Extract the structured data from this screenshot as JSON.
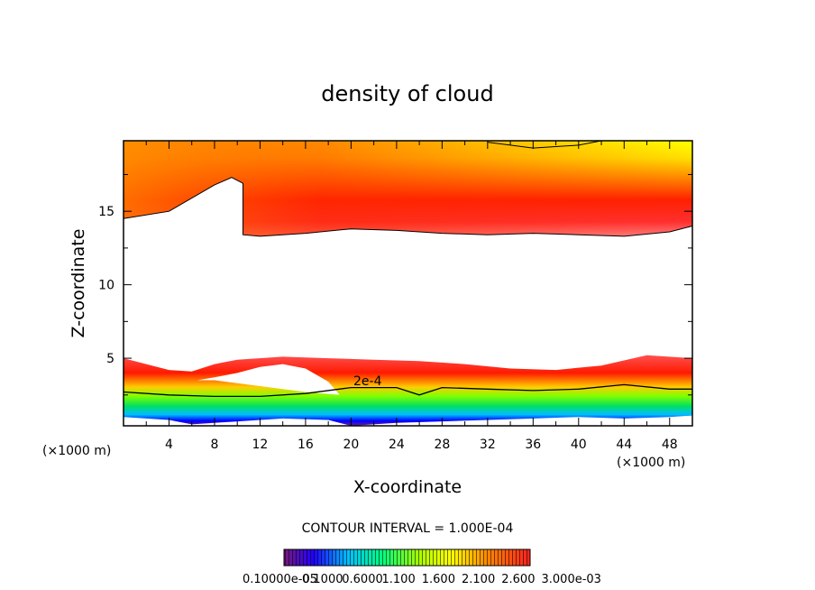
{
  "chart_data": {
    "type": "contour",
    "title": "density of cloud",
    "xlabel": "X-coordinate",
    "ylabel": "Z-coordinate",
    "x_unit_left": "(×1000 m)",
    "x_unit_right": "(×1000 m)",
    "xlim": [
      0,
      50
    ],
    "ylim": [
      0.4,
      19.8
    ],
    "x_ticks": [
      "4",
      "8",
      "12",
      "16",
      "20",
      "24",
      "28",
      "32",
      "36",
      "40",
      "44",
      "48"
    ],
    "x_tick_values": [
      4,
      8,
      12,
      16,
      20,
      24,
      28,
      32,
      36,
      40,
      44,
      48
    ],
    "y_ticks": [
      "5",
      "10",
      "15"
    ],
    "y_tick_values": [
      5,
      10,
      15
    ],
    "contour_label": "2e-4",
    "contour_interval_text": "CONTOUR INTERVAL = 1.000E-04",
    "colorbar_text": "0.10000e-05",
    "colorbar_tick_labels": [
      "0.1000",
      "0.6000",
      "1.100",
      "1.600",
      "2.100",
      "2.600",
      "3.000e-03"
    ],
    "colorbar_range": [
      1e-07,
      0.003
    ],
    "colormap": [
      "#4b0082",
      "#0000ff",
      "#00bfff",
      "#00ff7f",
      "#7fff00",
      "#ffff00",
      "#ff8c00",
      "#ff2a00",
      "#ff0000"
    ],
    "upper_layer": {
      "bottom_km": [
        [
          0,
          14.5
        ],
        [
          4,
          15.0
        ],
        [
          8,
          16.8
        ],
        [
          9.5,
          17.3
        ],
        [
          10.5,
          16.9
        ],
        [
          10.5,
          13.4
        ],
        [
          12,
          13.3
        ],
        [
          16,
          13.5
        ],
        [
          20,
          13.8
        ],
        [
          24,
          13.7
        ],
        [
          28,
          13.5
        ],
        [
          32,
          13.4
        ],
        [
          36,
          13.5
        ],
        [
          40,
          13.4
        ],
        [
          44,
          13.3
        ],
        [
          48,
          13.6
        ],
        [
          50,
          14.0
        ]
      ],
      "top_contour_km": [
        [
          32,
          19.7
        ],
        [
          36,
          19.3
        ],
        [
          40,
          19.5
        ],
        [
          42,
          19.8
        ]
      ]
    },
    "lower_layer": {
      "top_km": [
        [
          0,
          5.0
        ],
        [
          2,
          4.6
        ],
        [
          4,
          4.2
        ],
        [
          6,
          4.1
        ],
        [
          8,
          4.6
        ],
        [
          10,
          4.9
        ],
        [
          14,
          5.1
        ],
        [
          18,
          5.0
        ],
        [
          22,
          4.9
        ],
        [
          26,
          4.8
        ],
        [
          30,
          4.6
        ],
        [
          34,
          4.3
        ],
        [
          38,
          4.2
        ],
        [
          42,
          4.5
        ],
        [
          46,
          5.2
        ],
        [
          50,
          5.0
        ]
      ],
      "gap_km": [
        [
          6.5,
          3.5
        ],
        [
          8,
          3.7
        ],
        [
          10,
          4.0
        ],
        [
          12,
          4.4
        ],
        [
          14,
          4.6
        ],
        [
          16,
          4.3
        ],
        [
          18,
          3.4
        ],
        [
          19,
          2.5
        ],
        [
          16,
          2.7
        ],
        [
          12,
          3.1
        ],
        [
          8,
          3.5
        ]
      ],
      "contour_2e4_km": [
        [
          0,
          2.7
        ],
        [
          4,
          2.5
        ],
        [
          8,
          2.4
        ],
        [
          12,
          2.4
        ],
        [
          16,
          2.6
        ],
        [
          20,
          3.0
        ],
        [
          24,
          3.0
        ],
        [
          26,
          2.5
        ],
        [
          28,
          3.0
        ],
        [
          32,
          2.9
        ],
        [
          36,
          2.8
        ],
        [
          40,
          2.9
        ],
        [
          44,
          3.2
        ],
        [
          48,
          2.9
        ],
        [
          50,
          2.9
        ]
      ],
      "bottom_km": [
        [
          0,
          1.0
        ],
        [
          4,
          0.8
        ],
        [
          6,
          0.5
        ],
        [
          10,
          0.7
        ],
        [
          14,
          0.9
        ],
        [
          18,
          0.8
        ],
        [
          20,
          0.4
        ],
        [
          24,
          0.6
        ],
        [
          28,
          0.7
        ],
        [
          32,
          0.8
        ],
        [
          36,
          0.9
        ],
        [
          40,
          1.0
        ],
        [
          44,
          0.9
        ],
        [
          48,
          1.0
        ],
        [
          50,
          1.1
        ]
      ]
    }
  }
}
